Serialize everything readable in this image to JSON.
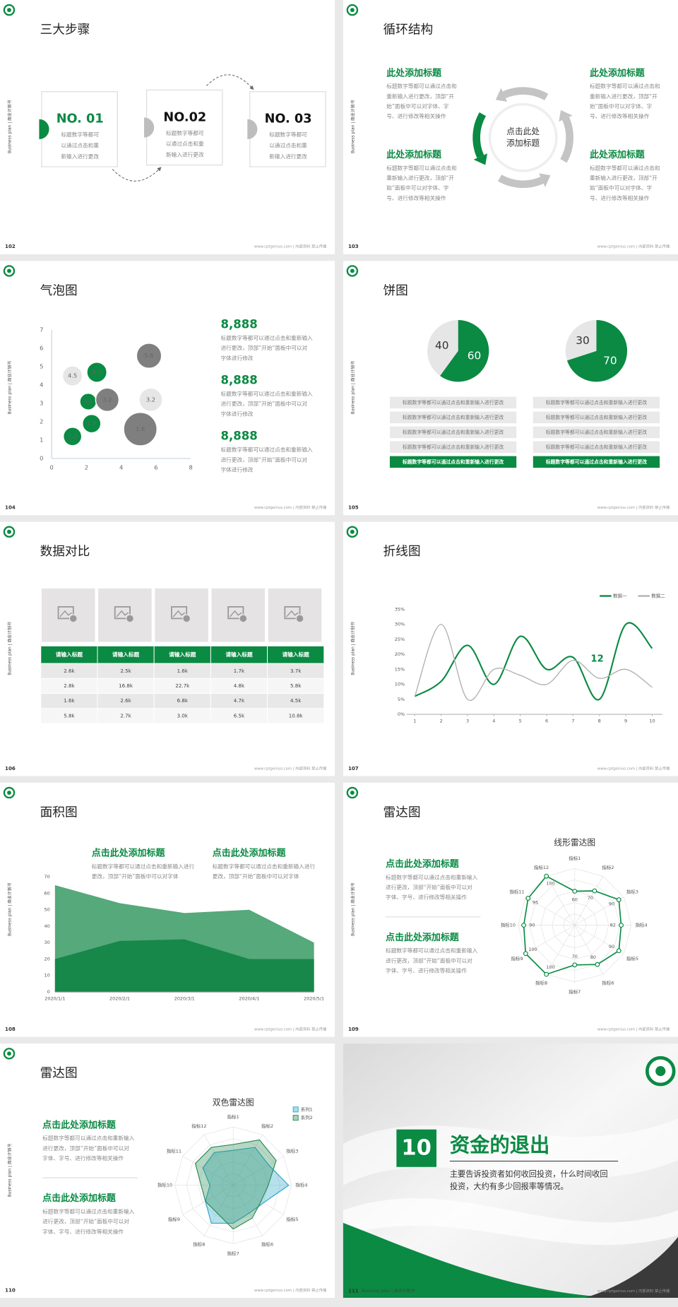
{
  "common": {
    "side_label": "Business plan | 商业计划书",
    "footer": "www.cptgenius.com | 内部资料 禁止传播"
  },
  "slides": [
    {
      "number": "102",
      "title": "三大步骤",
      "steps": [
        {
          "label": "NO. 01",
          "lines": [
            "标题数字等都可",
            "以通过点击和重",
            "新输入进行更改"
          ]
        },
        {
          "label": "NO.02",
          "lines": [
            "标题数字等都可",
            "以通过点击和重",
            "新输入进行更改"
          ]
        },
        {
          "label": "NO. 03",
          "lines": [
            "标题数字等都可",
            "以通过点击和重",
            "新输入进行更改"
          ]
        }
      ]
    },
    {
      "number": "103",
      "title": "循环结构",
      "center": [
        "点击此处",
        "添加标题"
      ],
      "items": [
        {
          "title": "此处添加标题",
          "lines": [
            "标题数字等都可以通过点击和",
            "重新输入进行更改，顶部“开",
            "始”面板中可以对字体、字",
            "号、进行修改等相关操作"
          ]
        },
        {
          "title": "此处添加标题",
          "lines": [
            "标题数字等都可以通过点击和",
            "重新输入进行更改，顶部“开",
            "始”面板中可以对字体、字",
            "号、进行修改等相关操作"
          ]
        },
        {
          "title": "此处添加标题",
          "lines": [
            "标题数字等都可以通过点击和",
            "重新输入进行更改，顶部“开",
            "始”面板中可以对字体、字",
            "号、进行修改等相关操作"
          ]
        },
        {
          "title": "此处添加标题",
          "lines": [
            "标题数字等都可以通过点击和",
            "重新输入进行更改，顶部“开",
            "始”面板中可以对字体、字",
            "号、进行修改等相关操作"
          ]
        }
      ]
    },
    {
      "number": "104",
      "title": "气泡图",
      "chart": {
        "type": "bubble",
        "x": [
          1.2,
          2.6,
          2.1,
          3.2,
          5.6,
          5.7,
          2.3,
          5.1,
          1.2
        ],
        "y": [
          4.5,
          4.7,
          3.1,
          3.2,
          5.6,
          3.2,
          1.9,
          1.6,
          1.2
        ],
        "sizes": [
          12,
          12,
          10,
          14,
          15,
          14,
          11,
          20,
          11
        ],
        "colors": [
          "#e6e6e6",
          "#0a8a43",
          "#0a8a43",
          "#7f7f7f",
          "#7f7f7f",
          "#e6e6e6",
          "#0a8a43",
          "#7f7f7f",
          "#0a8a43"
        ],
        "xlim": [
          0,
          8
        ],
        "ylim": [
          0,
          7
        ],
        "xticks": [
          0,
          2,
          4,
          6,
          8
        ],
        "yticks": [
          0,
          1,
          2,
          3,
          4,
          5,
          6,
          7
        ]
      },
      "items": [
        {
          "heading": "8,888",
          "lines": [
            "标题数字等都可以通过点击和重新输入",
            "进行更改，顶部“开始”面板中可以对",
            "字体进行修改"
          ]
        },
        {
          "heading": "8,888",
          "lines": [
            "标题数字等都可以通过点击和重新输入",
            "进行更改，顶部“开始”面板中可以对",
            "字体进行修改"
          ]
        },
        {
          "heading": "8,888",
          "lines": [
            "标题数字等都可以通过点击和重新输入",
            "进行更改，顶部“开始”面板中可以对",
            "字体进行修改"
          ]
        }
      ]
    },
    {
      "number": "105",
      "title": "饼图",
      "pies": [
        {
          "type": "pie",
          "values": [
            40,
            60
          ],
          "colors": [
            "#e6e6e6",
            "#0a8a43"
          ]
        },
        {
          "type": "pie",
          "values": [
            30,
            70
          ],
          "colors": [
            "#e6e6e6",
            "#0a8a43"
          ]
        }
      ],
      "rows_left": [
        "标题数字等都可以通过点击和重新输入进行更改",
        "标题数字等都可以通过点击和重新输入进行更改",
        "标题数字等都可以通过点击和重新输入进行更改",
        "标题数字等都可以通过点击和重新输入进行更改",
        "标题数字等都可以通过点击和重新输入进行更改"
      ],
      "rows_right": [
        "标题数字等都可以通过点击和重新输入进行更改",
        "标题数字等都可以通过点击和重新输入进行更改",
        "标题数字等都可以通过点击和重新输入进行更改",
        "标题数字等都可以通过点击和重新输入进行更改",
        "标题数字等都可以通过点击和重新输入进行更改"
      ]
    },
    {
      "number": "106",
      "title": "数据对比",
      "table": {
        "header": [
          "请输入标题",
          "请输入标题",
          "请输入标题",
          "请输入标题",
          "请输入标题"
        ],
        "rows": [
          [
            "2.6k",
            "2.5k",
            "1.6k",
            "1.7k",
            "3.7k"
          ],
          [
            "2.8k",
            "16.8k",
            "22.7k",
            "4.8k",
            "5.8k"
          ],
          [
            "1.6k",
            "2.6k",
            "6.8k",
            "4.7k",
            "4.5k"
          ],
          [
            "5.8k",
            "2.7k",
            "3.0k",
            "6.5k",
            "10.8k"
          ]
        ]
      }
    },
    {
      "number": "107",
      "title": "折线图",
      "chart": {
        "type": "line",
        "x": [
          1,
          2,
          3,
          4,
          5,
          6,
          7,
          8,
          9,
          10
        ],
        "xlim": [
          1,
          10
        ],
        "xticks": [
          1,
          2,
          3,
          4,
          5,
          6,
          7,
          8,
          9,
          10
        ],
        "ylim": [
          0,
          35
        ],
        "yticks": [
          {
            "value": 0,
            "label": "0%"
          },
          {
            "value": 5,
            "label": "5%"
          },
          {
            "value": 10,
            "label": "10%"
          },
          {
            "value": 15,
            "label": "15%"
          },
          {
            "value": 20,
            "label": "20%"
          },
          {
            "value": 25,
            "label": "25%"
          },
          {
            "value": 30,
            "label": "30%"
          },
          {
            "value": 35,
            "label": "35%"
          }
        ],
        "series": [
          {
            "name": "数据一",
            "color": "#0a8a43",
            "values": [
              6,
              11,
              23,
              10,
              26,
              15,
              19,
              5,
              30,
              22
            ]
          },
          {
            "name": "数据二",
            "color": "#b3b3b3",
            "values": [
              6,
              30,
              5,
              15,
              13,
              10,
              18,
              12,
              15,
              9
            ]
          }
        ],
        "annotation": "12"
      }
    },
    {
      "number": "108",
      "title": "面积图",
      "chart": {
        "type": "area",
        "x": [
          "2020/1/1",
          "2020/2/1",
          "2020/3/1",
          "2020/4/1",
          "2020/5/1"
        ],
        "ylim": [
          0,
          70
        ],
        "yticks": [
          0,
          10,
          20,
          30,
          40,
          50,
          60,
          70
        ],
        "series": [
          {
            "color": "#55a97a",
            "values": [
              65,
              54,
              48,
              50,
              30
            ]
          },
          {
            "color": "#17874a",
            "values": [
              20,
              31,
              32,
              20,
              20
            ]
          }
        ]
      },
      "items": [
        {
          "title": "点击此处添加标题",
          "lines": [
            "标题数字等都可以通过点击和重新输入进行",
            "更改，顶部“开始”面板中可以对字体"
          ]
        },
        {
          "title": "点击此处添加标题",
          "lines": [
            "标题数字等都可以通过点击和重新输入进行",
            "更改，顶部“开始”面板中可以对字体"
          ]
        }
      ]
    },
    {
      "number": "109",
      "title": "雷达图",
      "chart": {
        "type": "radar",
        "title": "线形雷达图",
        "categories": [
          "指标1",
          "指标2",
          "指标3",
          "指标4",
          "指标5",
          "指标6",
          "指标7",
          "指标8",
          "指标9",
          "指标10",
          "指标11",
          "指标12"
        ],
        "values": [
          60,
          70,
          90,
          82,
          90,
          80,
          70,
          100,
          100,
          90,
          95,
          100
        ],
        "rlim": [
          0,
          100
        ],
        "color": "#0a8a43"
      },
      "items": [
        {
          "title": "点击此处添加标题",
          "lines": [
            "标题数字等都可以通过点击和重新输入",
            "进行更改，顶部“开始”面板中可以对",
            "字体、字号、进行修改等相关操作"
          ]
        },
        {
          "title": "点击此处添加标题",
          "lines": [
            "标题数字等都可以通过点击和重新输入",
            "进行更改，顶部“开始”面板中可以对",
            "字体、字号、进行修改等相关操作"
          ]
        }
      ]
    },
    {
      "number": "110",
      "title": "雷达图",
      "chart": {
        "type": "radar",
        "title": "双色雷达图",
        "categories": [
          "指标1",
          "指标2",
          "指标3",
          "指标4",
          "指标5",
          "指标6",
          "指标7",
          "指标8",
          "指标9",
          "指标10",
          "指标11",
          "指标12"
        ],
        "rlim": [
          0,
          100
        ],
        "series": [
          {
            "name": "系列1",
            "color": "#2fa8c8",
            "values": [
              60,
              75,
              70,
              95,
              60,
              55,
              65,
              75,
              55,
              40,
              60,
              65
            ]
          },
          {
            "name": "系列2",
            "color": "#2e8b57",
            "values": [
              70,
              90,
              85,
              60,
              55,
              65,
              75,
              55,
              55,
              55,
              75,
              75
            ]
          }
        ]
      },
      "items": [
        {
          "title": "点击此处添加标题",
          "lines": [
            "标题数字等都可以通过点击和重新输入",
            "进行更改，顶部“开始”面板中可以对",
            "字体、字号、进行修改等相关操作"
          ]
        },
        {
          "title": "点击此处添加标题",
          "lines": [
            "标题数字等都可以通过点击和重新输入",
            "进行更改，顶部“开始”面板中可以对",
            "字体、字号、进行修改等相关操作"
          ]
        }
      ]
    },
    {
      "number": "111",
      "section": {
        "number": "10",
        "title": "资金的退出",
        "lines": [
          "主要告诉投资者如何收回投资，什么时间收回",
          "投资，大约有多少回报率等情况。"
        ]
      }
    }
  ]
}
